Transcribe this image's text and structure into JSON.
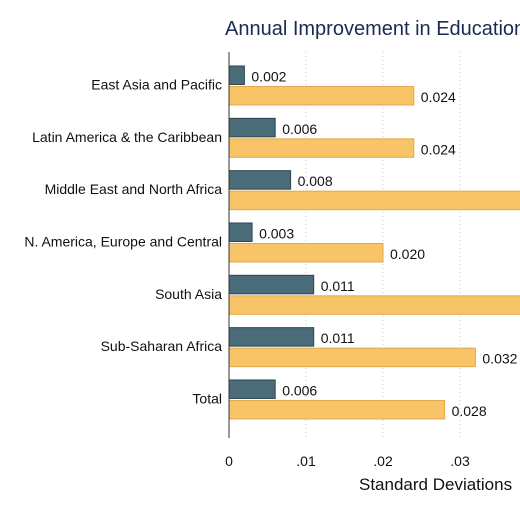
{
  "chart_data": {
    "type": "bar",
    "orientation": "horizontal",
    "title": "Annual Improvement in Education",
    "xlabel": "Standard Deviations",
    "ylabel": "",
    "categories": [
      "East Asia and Pacific",
      "Latin America & the Caribbean",
      "Middle East and North Africa",
      "N. America, Europe and Central",
      "South Asia",
      "Sub-Saharan Africa",
      "Total"
    ],
    "series": [
      {
        "color": "#4a6c78",
        "values": [
          0.002,
          0.006,
          0.008,
          0.003,
          0.011,
          0.011,
          0.006
        ],
        "value_labels": [
          "0.002",
          "0.006",
          "0.008",
          "0.003",
          "0.011",
          "0.011",
          "0.006"
        ]
      },
      {
        "color": "#f7c468",
        "values": [
          0.024,
          0.024,
          0.039,
          0.02,
          0.038,
          0.032,
          0.028
        ],
        "value_labels": [
          "0.024",
          "0.024",
          "",
          "0.020",
          "",
          "0.032",
          "0.028"
        ]
      }
    ],
    "xticks": [
      0,
      0.01,
      0.02,
      0.03
    ],
    "xtick_labels": [
      "0",
      ".01",
      ".02",
      ".03"
    ],
    "xlim": [
      0,
      0.0377
    ],
    "grid": "vertical dotted",
    "legend": "none"
  }
}
